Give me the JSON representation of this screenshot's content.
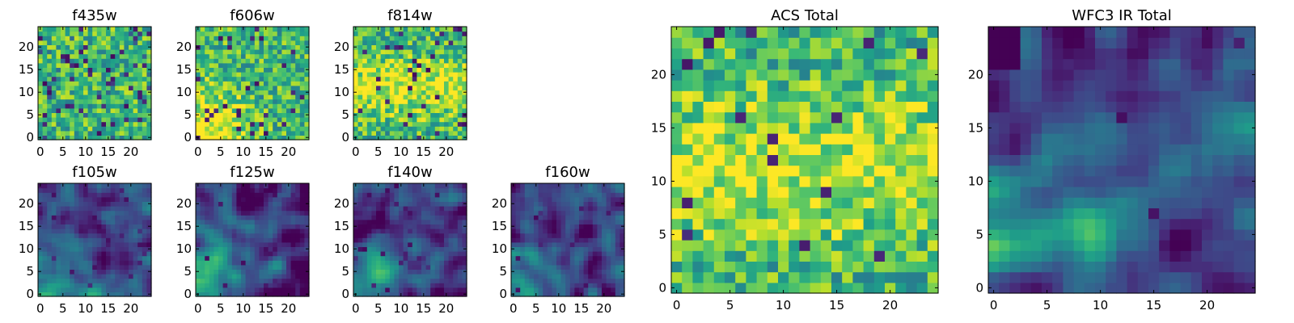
{
  "chart_data": [
    {
      "type": "heatmap",
      "title": "f435w",
      "colormap": "viridis",
      "grid_size": 25,
      "xlim": [
        0,
        24
      ],
      "ylim": [
        0,
        24
      ],
      "x_ticks": [
        0,
        5,
        10,
        15,
        20
      ],
      "y_ticks": [
        0,
        5,
        10,
        15,
        20
      ],
      "pattern": "speckled noise",
      "seed": 11,
      "low_fraction": 0.05
    },
    {
      "type": "heatmap",
      "title": "f606w",
      "colormap": "viridis",
      "grid_size": 25,
      "xlim": [
        0,
        24
      ],
      "ylim": [
        0,
        24
      ],
      "x_ticks": [
        0,
        5,
        10,
        15,
        20
      ],
      "y_ticks": [
        0,
        5,
        10,
        15,
        20
      ],
      "pattern": "noise, brighter lower-left",
      "seed": 23,
      "low_fraction": 0.04
    },
    {
      "type": "heatmap",
      "title": "f814w",
      "colormap": "viridis",
      "grid_size": 25,
      "xlim": [
        0,
        24
      ],
      "ylim": [
        0,
        24
      ],
      "x_ticks": [
        0,
        5,
        10,
        15,
        20
      ],
      "y_ticks": [
        0,
        5,
        10,
        15,
        20
      ],
      "pattern": "noise, bright centre",
      "seed": 37,
      "low_fraction": 0.05
    },
    {
      "type": "heatmap",
      "title": "f105w",
      "colormap": "viridis",
      "grid_size": 25,
      "xlim": [
        0,
        24
      ],
      "ylim": [
        0,
        24
      ],
      "x_ticks": [
        0,
        5,
        10,
        15,
        20
      ],
      "y_ticks": [
        0,
        5,
        10,
        15,
        20
      ],
      "pattern": "smooth blobs, bright lower-left",
      "seed": 41,
      "low_fraction": 0.03
    },
    {
      "type": "heatmap",
      "title": "f125w",
      "colormap": "viridis",
      "grid_size": 25,
      "xlim": [
        0,
        24
      ],
      "ylim": [
        0,
        24
      ],
      "x_ticks": [
        0,
        5,
        10,
        15,
        20
      ],
      "y_ticks": [
        0,
        5,
        10,
        15,
        20
      ],
      "pattern": "smooth blobs, bright lower-left",
      "seed": 53,
      "low_fraction": 0.03
    },
    {
      "type": "heatmap",
      "title": "f140w",
      "colormap": "viridis",
      "grid_size": 25,
      "xlim": [
        0,
        24
      ],
      "ylim": [
        0,
        24
      ],
      "x_ticks": [
        0,
        5,
        10,
        15,
        20
      ],
      "y_ticks": [
        0,
        5,
        10,
        15,
        20
      ],
      "pattern": "smooth blobs, bright lower-left",
      "seed": 67,
      "low_fraction": 0.03
    },
    {
      "type": "heatmap",
      "title": "f160w",
      "colormap": "viridis",
      "grid_size": 25,
      "xlim": [
        0,
        24
      ],
      "ylim": [
        0,
        24
      ],
      "x_ticks": [
        0,
        5,
        10,
        15,
        20
      ],
      "y_ticks": [
        0,
        5,
        10,
        15,
        20
      ],
      "pattern": "smooth blobs, bright lower-left corner",
      "seed": 79,
      "low_fraction": 0.03
    },
    {
      "type": "heatmap",
      "title": "ACS Total",
      "colormap": "viridis",
      "grid_size": 25,
      "xlim": [
        0,
        24
      ],
      "ylim": [
        0,
        24
      ],
      "x_ticks": [
        0,
        5,
        10,
        15,
        20
      ],
      "y_ticks": [
        0,
        5,
        10,
        15,
        20
      ],
      "pattern": "blocky, bright band through middle",
      "seed": 83,
      "low_fraction": 0.03
    },
    {
      "type": "heatmap",
      "title": "WFC3 IR Total",
      "colormap": "viridis",
      "grid_size": 25,
      "xlim": [
        0,
        24
      ],
      "ylim": [
        0,
        24
      ],
      "x_ticks": [
        0,
        5,
        10,
        15,
        20
      ],
      "y_ticks": [
        0,
        5,
        10,
        15,
        20
      ],
      "pattern": "smooth, bright lower-left, dark top-left",
      "seed": 97,
      "low_fraction": 0.01
    }
  ]
}
